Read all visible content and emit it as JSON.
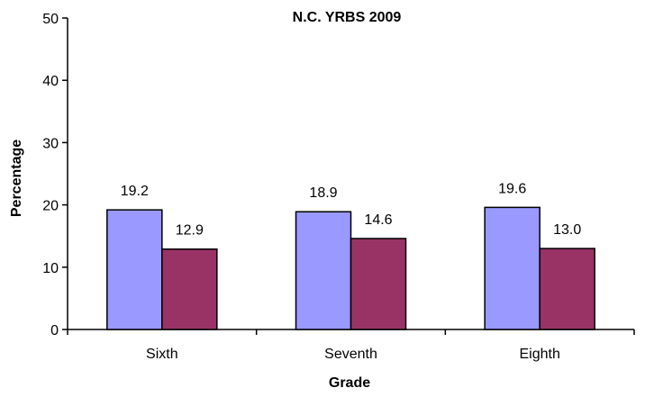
{
  "chart_data": {
    "type": "bar",
    "title": "N.C. YRBS 2009",
    "xlabel": "Grade",
    "ylabel": "Percentage",
    "categories": [
      "Sixth",
      "Seventh",
      "Eighth"
    ],
    "series": [
      {
        "color": "#9999ff",
        "values": [
          19.2,
          18.9,
          19.6
        ],
        "labels": [
          "19.2",
          "18.9",
          "19.6"
        ]
      },
      {
        "color": "#993366",
        "values": [
          12.9,
          14.6,
          13.0
        ],
        "labels": [
          "12.9",
          "14.6",
          "13.0"
        ]
      }
    ],
    "ylim": [
      0,
      50
    ],
    "yticks": [
      0,
      10,
      20,
      30,
      40,
      50
    ],
    "ytick_labels": [
      "0",
      "10",
      "20",
      "30",
      "40",
      "50"
    ],
    "grid": false,
    "legend": "none"
  }
}
